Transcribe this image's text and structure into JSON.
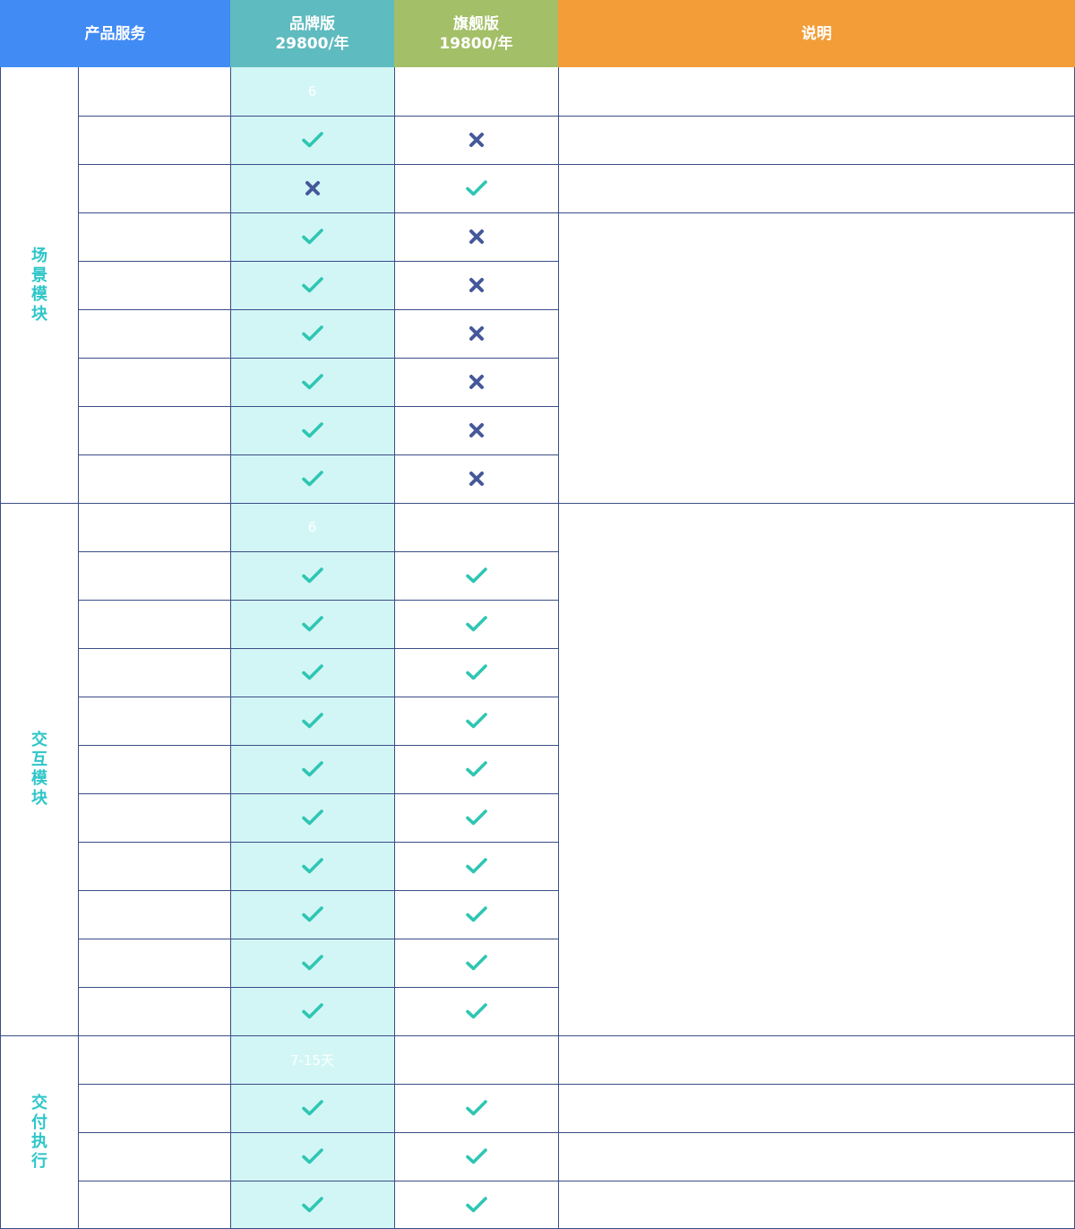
{
  "header": {
    "service_label": "产品服务",
    "brand_name": "品牌版",
    "brand_price": "29800/年",
    "flagship_name": "旗舰版",
    "flagship_price": "19800/年",
    "note_label": "说明",
    "colors": {
      "service": "#418bf5",
      "brand": "#5ebbbf",
      "flagship": "#a3bf67",
      "note": "#f29d38"
    }
  },
  "colors": {
    "check": "#2ec6b2",
    "cross": "#44589a",
    "brand_column": "#d2f6f6",
    "grid_line": "#3a4d86",
    "group_label": "#2ec6c9"
  },
  "groups": [
    {
      "label": "场景模块",
      "rows": [
        {
          "brand": {
            "type": "text",
            "value": "6"
          },
          "flagship": {
            "type": "none"
          }
        },
        {
          "brand": {
            "type": "check"
          },
          "flagship": {
            "type": "cross"
          }
        },
        {
          "brand": {
            "type": "cross"
          },
          "flagship": {
            "type": "check"
          }
        },
        {
          "brand": {
            "type": "check"
          },
          "flagship": {
            "type": "cross"
          }
        },
        {
          "brand": {
            "type": "check"
          },
          "flagship": {
            "type": "cross"
          }
        },
        {
          "brand": {
            "type": "check"
          },
          "flagship": {
            "type": "cross"
          }
        },
        {
          "brand": {
            "type": "check"
          },
          "flagship": {
            "type": "cross"
          }
        },
        {
          "brand": {
            "type": "check"
          },
          "flagship": {
            "type": "cross"
          }
        },
        {
          "brand": {
            "type": "check"
          },
          "flagship": {
            "type": "cross"
          }
        }
      ]
    },
    {
      "label": "交互模块",
      "rows": [
        {
          "brand": {
            "type": "text",
            "value": "6"
          },
          "flagship": {
            "type": "none"
          }
        },
        {
          "brand": {
            "type": "check"
          },
          "flagship": {
            "type": "check"
          }
        },
        {
          "brand": {
            "type": "check"
          },
          "flagship": {
            "type": "check"
          }
        },
        {
          "brand": {
            "type": "check"
          },
          "flagship": {
            "type": "check"
          }
        },
        {
          "brand": {
            "type": "check"
          },
          "flagship": {
            "type": "check"
          }
        },
        {
          "brand": {
            "type": "check"
          },
          "flagship": {
            "type": "check"
          }
        },
        {
          "brand": {
            "type": "check"
          },
          "flagship": {
            "type": "check"
          }
        },
        {
          "brand": {
            "type": "check"
          },
          "flagship": {
            "type": "check"
          }
        },
        {
          "brand": {
            "type": "check"
          },
          "flagship": {
            "type": "check"
          }
        },
        {
          "brand": {
            "type": "check"
          },
          "flagship": {
            "type": "check"
          }
        },
        {
          "brand": {
            "type": "check"
          },
          "flagship": {
            "type": "check"
          }
        }
      ]
    },
    {
      "label": "交付执行",
      "rows": [
        {
          "brand": {
            "type": "text",
            "value": "7-15天"
          },
          "flagship": {
            "type": "none"
          }
        },
        {
          "brand": {
            "type": "check"
          },
          "flagship": {
            "type": "check"
          }
        },
        {
          "brand": {
            "type": "check"
          },
          "flagship": {
            "type": "check"
          }
        },
        {
          "brand": {
            "type": "check"
          },
          "flagship": {
            "type": "check"
          }
        }
      ]
    }
  ]
}
